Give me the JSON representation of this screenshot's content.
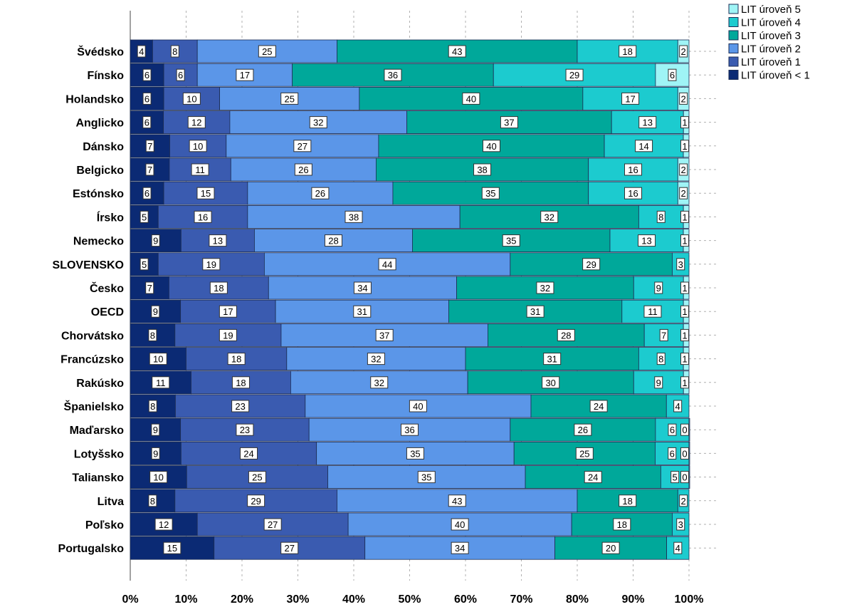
{
  "chart_data": {
    "type": "bar",
    "orientation": "horizontal",
    "stacked": "percent",
    "title": "",
    "xlabel": "",
    "ylabel": "",
    "xlim": [
      0,
      100
    ],
    "x_ticks": [
      "0%",
      "10%",
      "20%",
      "30%",
      "40%",
      "50%",
      "60%",
      "70%",
      "80%",
      "90%",
      "100%"
    ],
    "grid": "vertical dashed",
    "legend_position": "top-right",
    "categories": [
      "Švédsko",
      "Fínsko",
      "Holandsko",
      "Anglicko",
      "Dánsko",
      "Belgicko",
      "Estónsko",
      "Írsko",
      "Nemecko",
      "SLOVENSKO",
      "Česko",
      "OECD",
      "Chorvátsko",
      "Francúzsko",
      "Rakúsko",
      "Španielsko",
      "Maďarsko",
      "Lotyšsko",
      "Taliansko",
      "Litva",
      "Poľsko",
      "Portugalsko"
    ],
    "series": [
      {
        "name": "LIT úroveň < 1",
        "color": "#0b2a74",
        "values": [
          4,
          6,
          6,
          6,
          7,
          7,
          6,
          5,
          9,
          5,
          7,
          9,
          8,
          10,
          11,
          8,
          9,
          9,
          10,
          8,
          12,
          15
        ]
      },
      {
        "name": "LIT úroveň 1",
        "color": "#3a5bb0",
        "values": [
          8,
          6,
          10,
          12,
          10,
          11,
          15,
          16,
          13,
          19,
          18,
          17,
          19,
          18,
          18,
          23,
          23,
          24,
          25,
          29,
          27,
          27
        ]
      },
      {
        "name": "LIT úroveň 2",
        "color": "#5b96e8",
        "values": [
          25,
          17,
          25,
          32,
          27,
          26,
          26,
          38,
          28,
          44,
          34,
          31,
          37,
          32,
          32,
          40,
          36,
          35,
          35,
          43,
          40,
          34
        ]
      },
      {
        "name": "LIT úroveň 3",
        "color": "#00a89a",
        "values": [
          43,
          36,
          40,
          37,
          40,
          38,
          35,
          32,
          35,
          29,
          32,
          31,
          28,
          31,
          30,
          24,
          26,
          25,
          24,
          18,
          18,
          20
        ]
      },
      {
        "name": "LIT úroveň 4",
        "color": "#1ccbcf",
        "values": [
          18,
          29,
          17,
          13,
          14,
          16,
          16,
          8,
          13,
          3,
          9,
          11,
          7,
          8,
          9,
          4,
          6,
          6,
          5,
          2,
          3,
          4
        ]
      },
      {
        "name": "LIT úroveň 5",
        "color": "#9ff4f6",
        "values": [
          2,
          6,
          2,
          1,
          1,
          2,
          2,
          1,
          1,
          null,
          1,
          1,
          1,
          1,
          1,
          null,
          0,
          0,
          0,
          null,
          null,
          null
        ]
      }
    ],
    "legend_order": [
      "LIT úroveň 5",
      "LIT úroveň 4",
      "LIT úroveň 3",
      "LIT úroveň 2",
      "LIT úroveň 1",
      "LIT úroveň < 1"
    ]
  }
}
